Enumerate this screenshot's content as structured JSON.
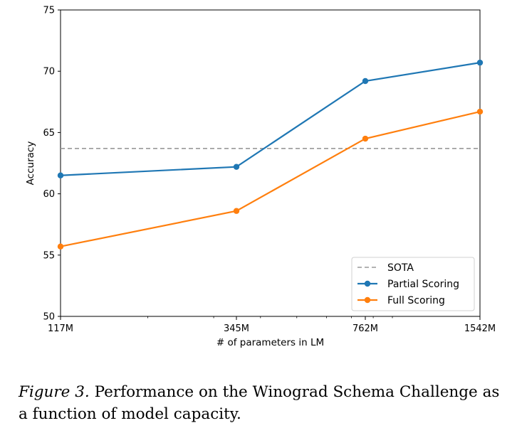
{
  "chart_data": {
    "type": "line",
    "xscale": "log",
    "xlabel": "# of parameters in LM",
    "ylabel": "Accuracy",
    "categories": [
      "117M",
      "345M",
      "762M",
      "1542M"
    ],
    "x": [
      117,
      345,
      762,
      1542
    ],
    "xlim": [
      117,
      1542
    ],
    "ylim": [
      50,
      75
    ],
    "yticks": [
      50,
      55,
      60,
      65,
      70,
      75
    ],
    "ytick_labels": [
      "50",
      "55",
      "60",
      "65",
      "70",
      "75"
    ],
    "series": [
      {
        "name": "SOTA",
        "style": "dashed",
        "color": "#999999",
        "values": [
          63.7,
          63.7,
          63.7,
          63.7
        ]
      },
      {
        "name": "Partial Scoring",
        "style": "solid",
        "marker": "circle",
        "color": "#1f77b4",
        "values": [
          61.5,
          62.2,
          69.2,
          70.7
        ]
      },
      {
        "name": "Full Scoring",
        "style": "solid",
        "marker": "circle",
        "color": "#ff7f0e",
        "values": [
          55.7,
          58.6,
          64.5,
          66.7
        ]
      }
    ],
    "legend_position": "bottom-right",
    "grid": false
  },
  "caption": {
    "figure_label": "Figure 3.",
    "text": "Performance on the Winograd Schema Challenge as a function of model capacity."
  }
}
